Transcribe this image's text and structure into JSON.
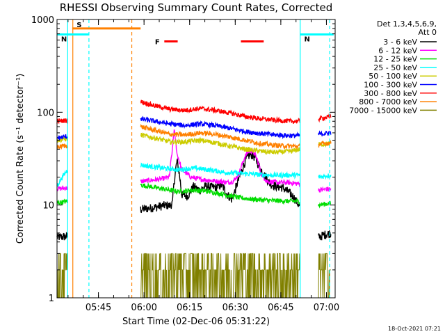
{
  "chart_data": {
    "type": "line",
    "title": "RHESSI Observing Summary Count Rates, Corrected",
    "xlabel": "Start Time (02-Dec-06 05:31:22)",
    "ylabel": "Corrected Count Rate (s⁻¹ detector⁻¹)",
    "y_scale": "log",
    "ylim": [
      1,
      1000
    ],
    "xlim_minutes": [
      0,
      91.5
    ],
    "y_ticks": [
      {
        "value": 1,
        "label": "1"
      },
      {
        "value": 10,
        "label": "10"
      },
      {
        "value": 100,
        "label": "100"
      },
      {
        "value": 1000,
        "label": "1000"
      }
    ],
    "x_ticks": [
      {
        "minute": 13.63,
        "label": "05:45"
      },
      {
        "minute": 28.63,
        "label": "06:00"
      },
      {
        "minute": 43.63,
        "label": "06:15"
      },
      {
        "minute": 58.63,
        "label": "06:30"
      },
      {
        "minute": 73.63,
        "label": "06:45"
      },
      {
        "minute": 88.63,
        "label": "07:00"
      }
    ],
    "legend_header": [
      "Det 1,3,4,5,6,9,",
      "Att 0"
    ],
    "legend_position": "right",
    "gaps_minutes": [
      [
        3.5,
        27.5
      ],
      [
        80.0,
        86.0
      ]
    ],
    "series": [
      {
        "name": "3 - 6 keV",
        "color": "#000000",
        "x": [
          0,
          3.5,
          27.5,
          30,
          33,
          36,
          37,
          38,
          39.5,
          41,
          43,
          45,
          46,
          47,
          49,
          52,
          54,
          55,
          56,
          57,
          57.5,
          58.5,
          60.5,
          62,
          63,
          64,
          65,
          67,
          70,
          72,
          74,
          76,
          78,
          79.5,
          80,
          86,
          88,
          90
        ],
        "y": [
          4.5,
          4.6,
          9.0,
          9.2,
          9.6,
          10.0,
          9.8,
          10.5,
          30.0,
          13.0,
          12.5,
          16.0,
          15.0,
          14.5,
          16.0,
          15.5,
          16.5,
          15.0,
          13.0,
          12.0,
          11.5,
          14.0,
          22.0,
          30.0,
          34.0,
          35.0,
          33.0,
          24.0,
          17.0,
          16.0,
          15.5,
          14.0,
          12.0,
          10.0,
          9.5,
          4.5,
          4.8,
          5.0
        ]
      },
      {
        "name": "6 - 12 keV",
        "color": "#ff00ff",
        "x": [
          0,
          3.5,
          27.5,
          31,
          34,
          37,
          38,
          38.5,
          39.5,
          41,
          44,
          47,
          50,
          53,
          56,
          58,
          60,
          62,
          63,
          64,
          65,
          66,
          67,
          69,
          73,
          76,
          79,
          80,
          86,
          90
        ],
        "y": [
          15.0,
          15.3,
          18.0,
          18.5,
          19.0,
          20.0,
          40.0,
          65.0,
          35.0,
          24.0,
          20.0,
          19.0,
          18.5,
          18.0,
          17.5,
          18.0,
          22.0,
          34.0,
          38.0,
          38.0,
          36.0,
          30.0,
          22.0,
          18.0,
          17.5,
          17.5,
          17.0,
          17.0,
          14.5,
          15.0
        ]
      },
      {
        "name": "12 - 25 keV",
        "color": "#00dd00",
        "x": [
          0,
          3.5,
          27.5,
          32,
          37,
          40,
          45,
          50,
          55,
          60,
          65,
          70,
          75,
          80,
          86,
          90
        ],
        "y": [
          10.5,
          11.0,
          16.5,
          15.5,
          14.5,
          14.0,
          14.5,
          14.0,
          13.0,
          12.0,
          11.5,
          11.2,
          11.0,
          11.0,
          10.0,
          10.5
        ]
      },
      {
        "name": "25 - 50 keV",
        "color": "#00ffff",
        "x": [
          0,
          3.5,
          27.5,
          35,
          40,
          45,
          50,
          55,
          60,
          65,
          70,
          75,
          80,
          86,
          90
        ],
        "y": [
          16.0,
          24.0,
          27.0,
          25.0,
          24.0,
          25.0,
          24.0,
          22.5,
          22.0,
          21.5,
          21.0,
          21.0,
          21.0,
          20.0,
          21.0
        ]
      },
      {
        "name": "50 - 100 keV",
        "color": "#cccc00",
        "x": [
          0,
          3.5,
          27.5,
          32,
          37,
          42,
          47,
          52,
          57,
          62,
          67,
          72,
          77,
          80,
          86,
          90
        ],
        "y": [
          50.0,
          52.0,
          57.0,
          53.0,
          48.0,
          48.0,
          50.0,
          47.0,
          43.0,
          40.0,
          38.0,
          37.0,
          38.0,
          40.0,
          45.0,
          46.0
        ]
      },
      {
        "name": "100 - 300 keV",
        "color": "#0000ff",
        "x": [
          0,
          3.5,
          27.5,
          32,
          37,
          42,
          47,
          52,
          57,
          62,
          67,
          72,
          77,
          80,
          86,
          90
        ],
        "y": [
          53.0,
          55.0,
          85.0,
          80.0,
          75.0,
          72.0,
          75.0,
          72.0,
          67.0,
          62.0,
          59.0,
          57.0,
          56.0,
          56.0,
          58.0,
          60.0
        ]
      },
      {
        "name": "300 - 800 keV",
        "color": "#ff0000",
        "x": [
          0,
          3.5,
          27.5,
          32,
          37,
          42,
          47,
          52,
          57,
          62,
          67,
          72,
          77,
          80,
          86,
          90
        ],
        "y": [
          80.0,
          82.0,
          130.0,
          118.0,
          108.0,
          105.0,
          110.0,
          105.0,
          98.0,
          90.0,
          85.0,
          82.0,
          80.0,
          80.0,
          85.0,
          90.0
        ]
      },
      {
        "name": "800 - 7000 keV",
        "color": "#ff8000",
        "x": [
          0,
          3.5,
          27.5,
          32,
          37,
          42,
          47,
          52,
          57,
          62,
          67,
          72,
          77,
          80,
          86,
          90
        ],
        "y": [
          42.0,
          44.0,
          70.0,
          64.0,
          58.0,
          57.0,
          60.0,
          58.0,
          54.0,
          50.0,
          46.0,
          44.0,
          43.0,
          43.0,
          45.0,
          47.0
        ]
      },
      {
        "name": "7000 - 15000 keV",
        "color": "#808000",
        "x": [
          0,
          3.5,
          27.5,
          90
        ],
        "y": [
          2.5,
          2.5,
          2.5,
          2.5
        ]
      }
    ],
    "flags": [
      {
        "label": "S",
        "color": "#ff8000",
        "bar_minutes": [
          5,
          27.5
        ],
        "level": 800
      },
      {
        "label": "N",
        "color": "#00ffff",
        "bar_minutes": [
          0,
          10.5
        ],
        "level": 690
      },
      {
        "label": "N",
        "color": "#00ffff",
        "bar_minutes": [
          80,
          91
        ],
        "level": 690
      },
      {
        "label": "F",
        "color": "#ff0000",
        "bars_minutes": [
          [
            35.3,
            39.7
          ],
          [
            60.5,
            68.0
          ]
        ],
        "level": 580
      }
    ],
    "vertical_markers": [
      {
        "minute": 3.5,
        "color": "#00ffff",
        "style": "solid"
      },
      {
        "minute": 5.2,
        "color": "#ff8000",
        "style": "solid"
      },
      {
        "minute": 10.5,
        "color": "#00ffff",
        "style": "dashed"
      },
      {
        "minute": 24.6,
        "color": "#ff8000",
        "style": "dashed"
      },
      {
        "minute": 80.0,
        "color": "#00ffff",
        "style": "solid"
      },
      {
        "minute": 89.7,
        "color": "#00ffff",
        "style": "dashed"
      }
    ]
  },
  "footer": "18-Oct-2021 07:21"
}
